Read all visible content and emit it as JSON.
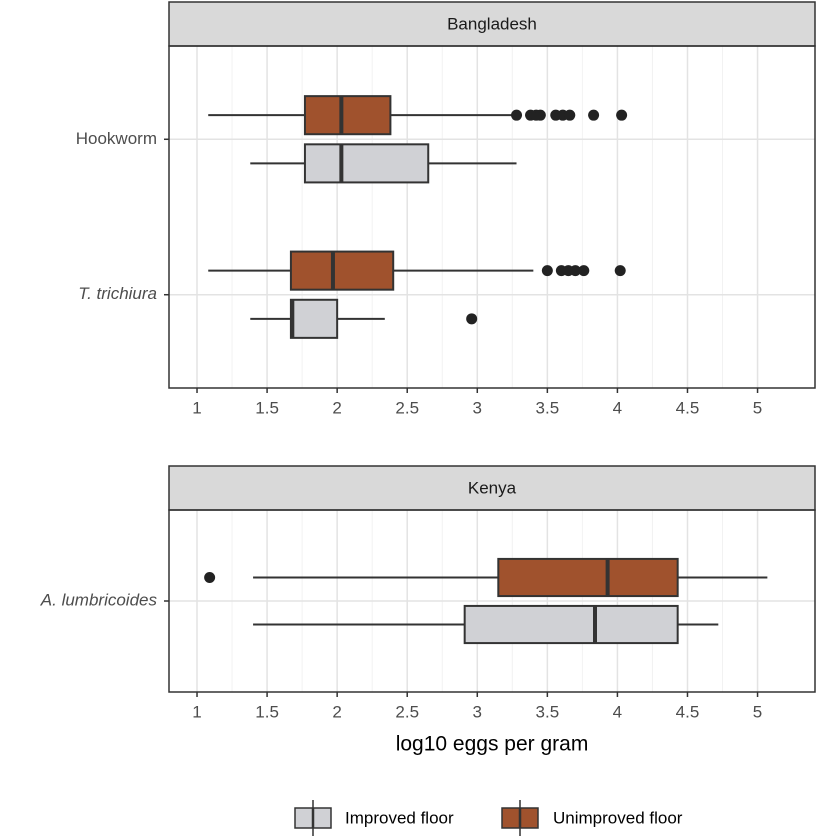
{
  "chart_data": {
    "type": "boxplot",
    "xlabel": "log10 eggs per gram",
    "xlim": [
      0.8,
      5.41
    ],
    "xticks": [
      1,
      1.5,
      2,
      2.5,
      3,
      3.5,
      4,
      4.5,
      5
    ],
    "grid": true,
    "legend": "bottom",
    "series": [
      {
        "name": "Improved floor",
        "color": "#d0d1d5"
      },
      {
        "name": "Unimproved floor",
        "color": "#a0522d"
      }
    ],
    "panels": [
      {
        "title": "Bangladesh",
        "categories": [
          "Hookworm",
          "T. trichiura"
        ],
        "italic": [
          false,
          true
        ],
        "stats": [
          [
            {
              "low": 1.38,
              "q1": 1.77,
              "median": 2.03,
              "q3": 2.65,
              "high": 3.28,
              "outliers": []
            },
            {
              "low": 1.08,
              "q1": 1.77,
              "median": 2.03,
              "q3": 2.38,
              "high": 3.28,
              "outliers": [
                3.28,
                3.38,
                3.42,
                3.45,
                3.56,
                3.61,
                3.66,
                3.83,
                4.03
              ]
            }
          ],
          [
            {
              "low": 1.38,
              "q1": 1.67,
              "median": 1.68,
              "q3": 2.0,
              "high": 2.34,
              "outliers": [
                2.96
              ]
            },
            {
              "low": 1.08,
              "q1": 1.67,
              "median": 1.97,
              "q3": 2.4,
              "high": 3.4,
              "outliers": [
                3.5,
                3.6,
                3.65,
                3.7,
                3.76,
                4.02
              ]
            }
          ]
        ]
      },
      {
        "title": "Kenya",
        "categories": [
          "A. lumbricoides"
        ],
        "italic": [
          true
        ],
        "stats": [
          [
            {
              "low": 1.4,
              "q1": 2.91,
              "median": 3.84,
              "q3": 4.43,
              "high": 4.72,
              "outliers": []
            },
            {
              "low": 1.4,
              "q1": 3.15,
              "median": 3.93,
              "q3": 4.43,
              "high": 5.07,
              "outliers": [
                1.09
              ]
            }
          ]
        ]
      }
    ]
  }
}
